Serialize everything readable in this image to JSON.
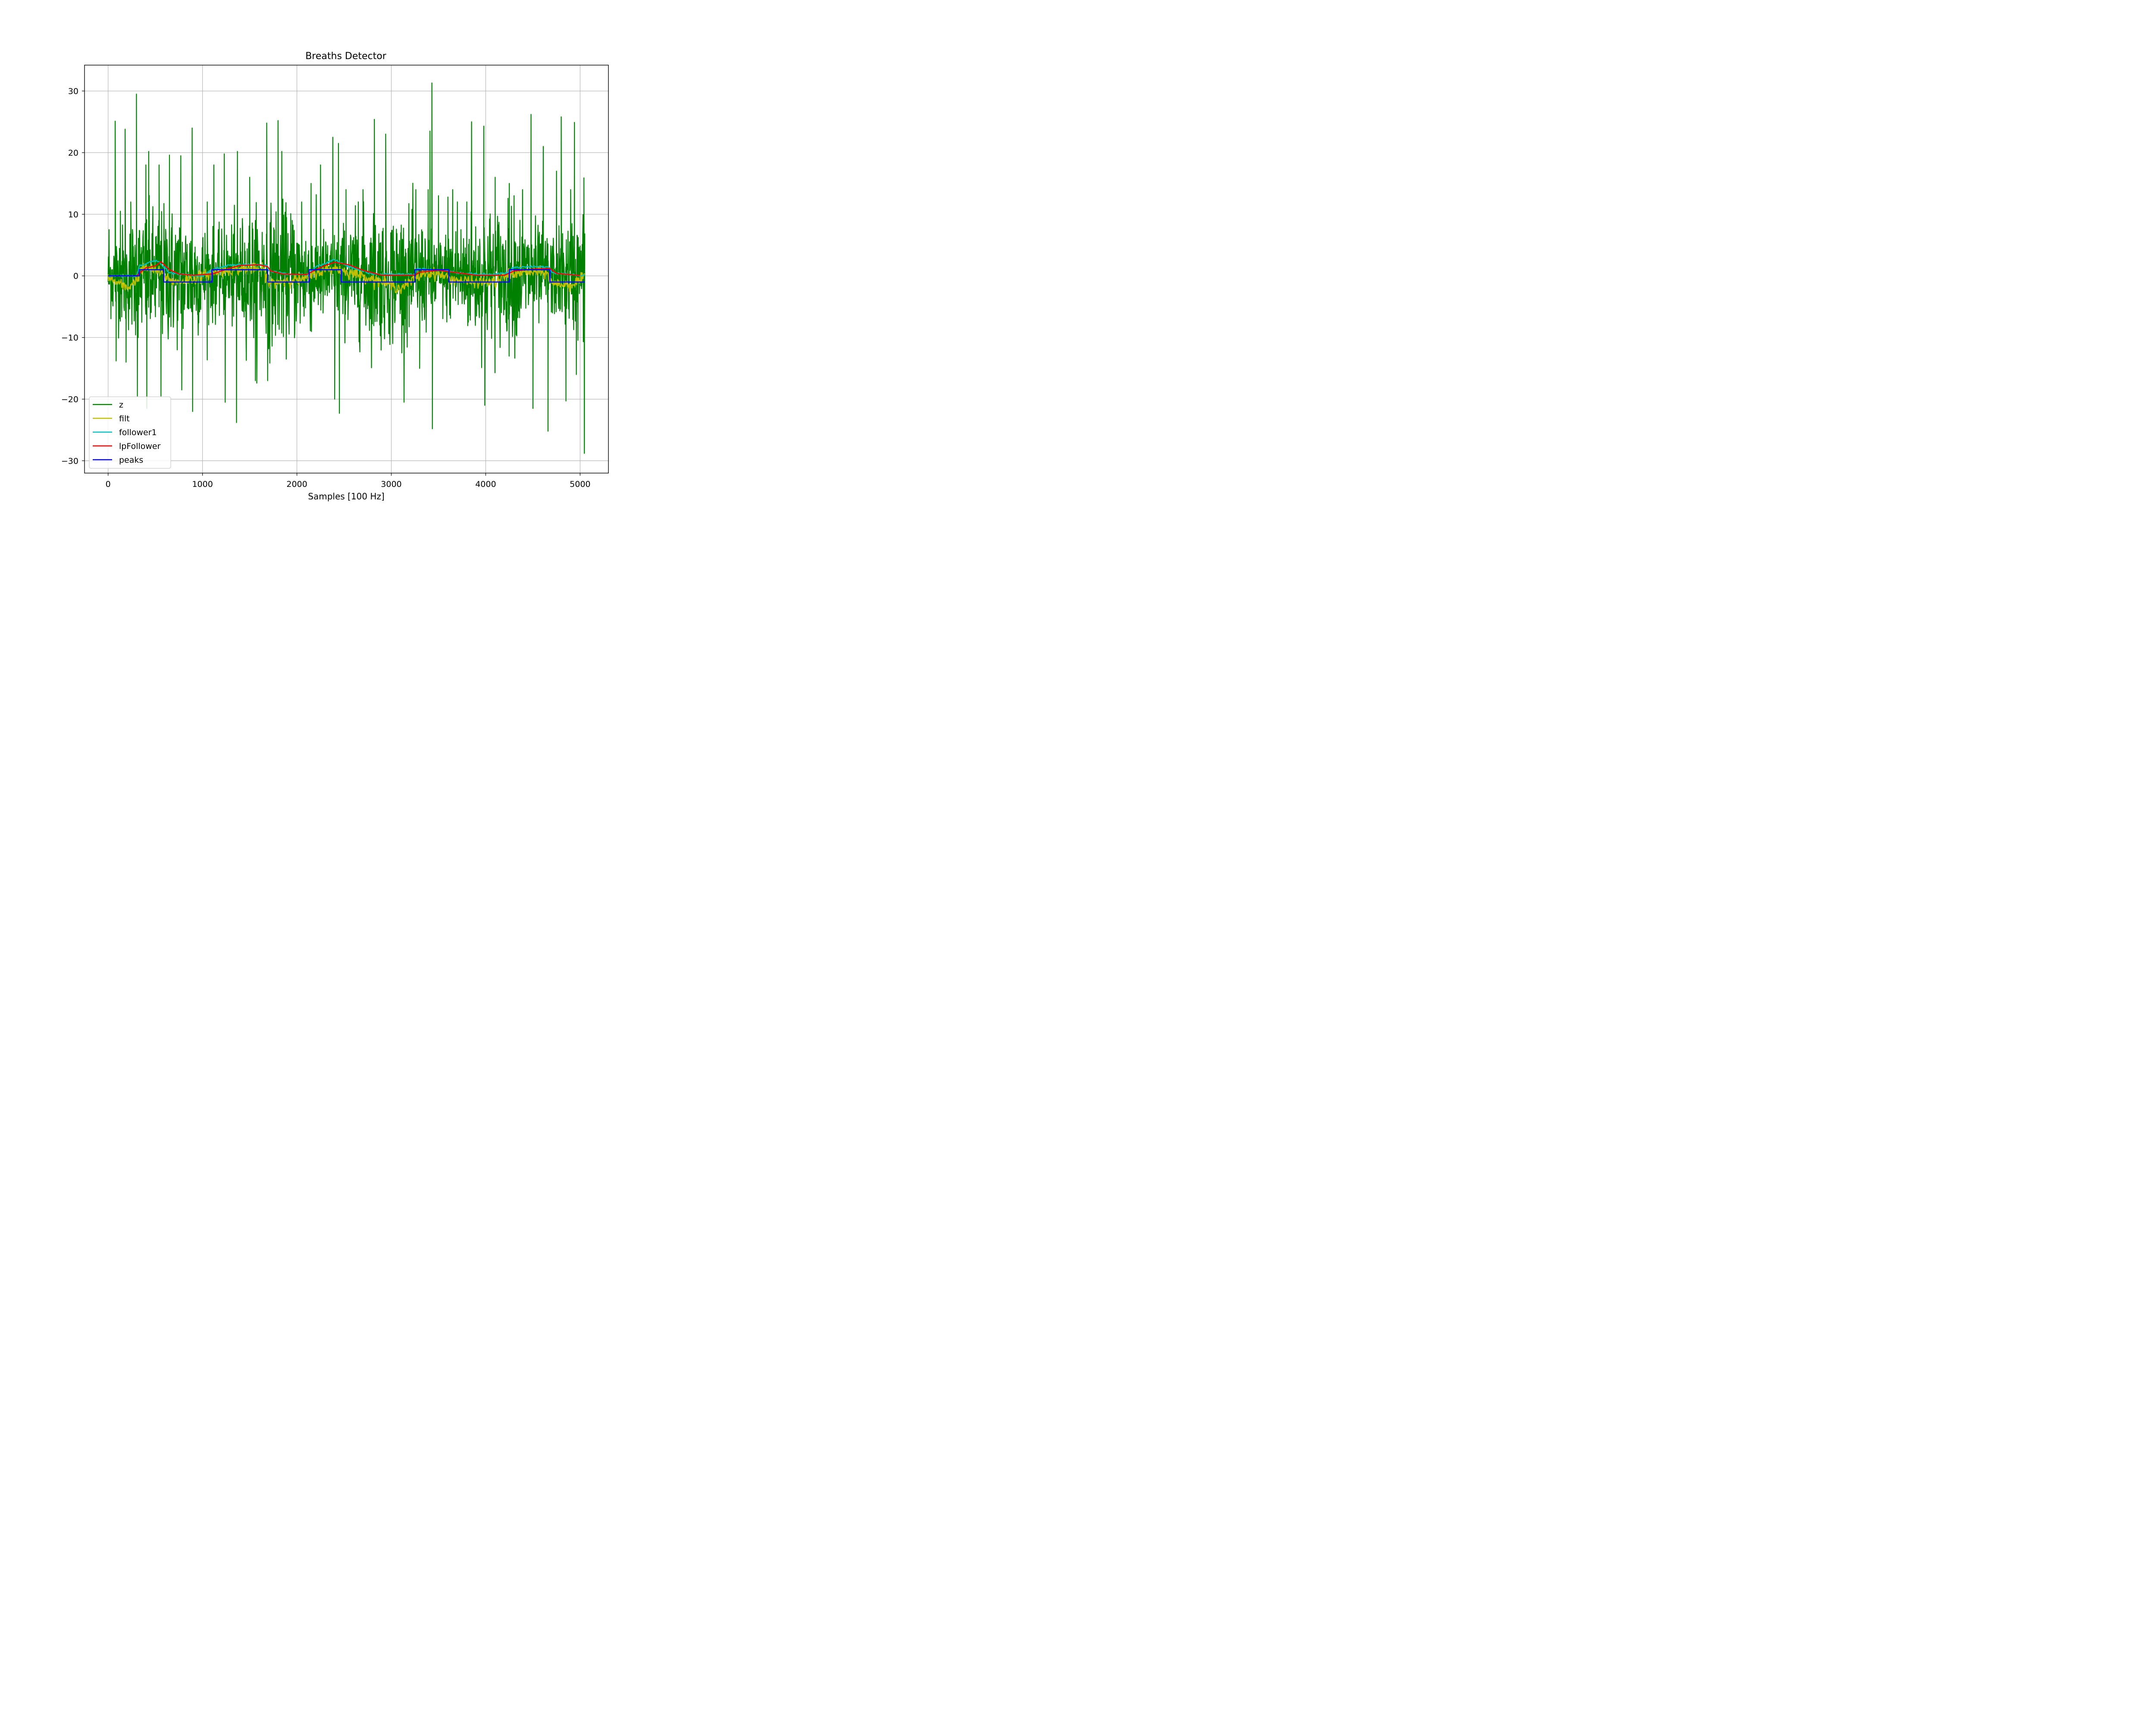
{
  "chart_data": {
    "type": "line",
    "title": "Breaths Detector",
    "xlabel": "Samples [100 Hz]",
    "ylabel": "",
    "xlim": [
      -250,
      5300
    ],
    "ylim": [
      -32,
      34.2
    ],
    "grid": true,
    "legend_position": "lower-left",
    "x_ticks": [
      0,
      1000,
      2000,
      3000,
      4000,
      5000
    ],
    "x_tick_labels": [
      "0",
      "1000",
      "2000",
      "3000",
      "4000",
      "5000"
    ],
    "y_ticks": [
      30,
      20,
      10,
      0,
      -10,
      -20,
      -30
    ],
    "y_tick_labels": [
      "30",
      "20",
      "10",
      "0",
      "−10",
      "−20",
      "−30"
    ],
    "n_samples": 5050,
    "series": [
      {
        "name": "z",
        "color": "#008000",
        "description_points": [
          [
            0,
            0
          ],
          [
            10,
            7.5
          ],
          [
            30,
            -5
          ],
          [
            75,
            25.1
          ],
          [
            85,
            -13.8
          ],
          [
            130,
            10.5
          ],
          [
            180,
            23.8
          ],
          [
            190,
            -14
          ],
          [
            240,
            12
          ],
          [
            300,
            29.5
          ],
          [
            310,
            -19.5
          ],
          [
            400,
            18
          ],
          [
            410,
            -21.5
          ],
          [
            430,
            20.2
          ],
          [
            540,
            18
          ],
          [
            560,
            -19.5
          ],
          [
            650,
            19.6
          ],
          [
            770,
            19.5
          ],
          [
            780,
            -18.5
          ],
          [
            890,
            24
          ],
          [
            895,
            -22
          ],
          [
            1050,
            12
          ],
          [
            1120,
            18
          ],
          [
            1230,
            19.8
          ],
          [
            1240,
            -20.5
          ],
          [
            1370,
            20.2
          ],
          [
            1360,
            -23.8
          ],
          [
            1500,
            16
          ],
          [
            1560,
            -17
          ],
          [
            1680,
            24.8
          ],
          [
            1690,
            -17
          ],
          [
            1800,
            25.2
          ],
          [
            1840,
            20.2
          ],
          [
            1950,
            9
          ],
          [
            2050,
            12
          ],
          [
            2150,
            15
          ],
          [
            2250,
            18
          ],
          [
            2380,
            22.5
          ],
          [
            2400,
            -20
          ],
          [
            2440,
            21.5
          ],
          [
            2450,
            -22.3
          ],
          [
            2520,
            14
          ],
          [
            2650,
            12
          ],
          [
            2700,
            14
          ],
          [
            2820,
            25.4
          ],
          [
            2940,
            23
          ],
          [
            3100,
            7
          ],
          [
            3260,
            14
          ],
          [
            3300,
            -15
          ],
          [
            3390,
            14
          ],
          [
            3410,
            23.5
          ],
          [
            3430,
            31.3
          ],
          [
            3435,
            -24.8
          ],
          [
            3500,
            13
          ],
          [
            3600,
            12.8
          ],
          [
            3650,
            14
          ],
          [
            3700,
            12
          ],
          [
            3800,
            12
          ],
          [
            3850,
            25
          ],
          [
            3980,
            24.3
          ],
          [
            3990,
            -21
          ],
          [
            4100,
            16
          ],
          [
            4250,
            15
          ],
          [
            4300,
            13
          ],
          [
            4390,
            14
          ],
          [
            4480,
            26.2
          ],
          [
            4500,
            -21.5
          ],
          [
            4610,
            21
          ],
          [
            4660,
            -25.2
          ],
          [
            4750,
            17
          ],
          [
            4800,
            25.8
          ],
          [
            4850,
            -20.3
          ],
          [
            4900,
            14
          ],
          [
            4940,
            24.9
          ],
          [
            4960,
            -16
          ],
          [
            5040,
            15.9
          ],
          [
            5045,
            -28.8
          ]
        ]
      },
      {
        "name": "filt",
        "color": "#bfbf00",
        "description_points": [
          [
            0,
            -0.3
          ],
          [
            200,
            -2
          ],
          [
            310,
            -0.5
          ],
          [
            350,
            1.2
          ],
          [
            500,
            1
          ],
          [
            600,
            0
          ],
          [
            700,
            -1
          ],
          [
            900,
            -0.5
          ],
          [
            1100,
            0.5
          ],
          [
            1300,
            1
          ],
          [
            1500,
            1.2
          ],
          [
            1650,
            1
          ],
          [
            1700,
            -1.2
          ],
          [
            1900,
            -0.7
          ],
          [
            2100,
            -0.5
          ],
          [
            2200,
            0.5
          ],
          [
            2400,
            1.3
          ],
          [
            2500,
            0.8
          ],
          [
            2700,
            0
          ],
          [
            2900,
            -1
          ],
          [
            3100,
            -2
          ],
          [
            3250,
            -0.5
          ],
          [
            3350,
            0.5
          ],
          [
            3500,
            0.3
          ],
          [
            3650,
            -0.5
          ],
          [
            3850,
            -1
          ],
          [
            4100,
            -1
          ],
          [
            4250,
            0.3
          ],
          [
            4450,
            0.6
          ],
          [
            4650,
            0.5
          ],
          [
            4700,
            -1.2
          ],
          [
            4900,
            -1.5
          ],
          [
            5050,
            -0.3
          ]
        ]
      },
      {
        "name": "follower1",
        "color": "#00bfbf",
        "description_points": [
          [
            0,
            0
          ],
          [
            300,
            0
          ],
          [
            330,
            1.6
          ],
          [
            500,
            2.5
          ],
          [
            560,
            2
          ],
          [
            650,
            0.5
          ],
          [
            800,
            0.2
          ],
          [
            1000,
            0
          ],
          [
            1100,
            1
          ],
          [
            1300,
            1.8
          ],
          [
            1500,
            1.8
          ],
          [
            1680,
            1.7
          ],
          [
            1700,
            0.8
          ],
          [
            1900,
            0.3
          ],
          [
            2120,
            0.2
          ],
          [
            2200,
            1.5
          ],
          [
            2400,
            2.6
          ],
          [
            2550,
            1.5
          ],
          [
            2800,
            0.3
          ],
          [
            3250,
            0.2
          ],
          [
            3270,
            1.2
          ],
          [
            3600,
            0.8
          ],
          [
            3700,
            0.5
          ],
          [
            4000,
            0.2
          ],
          [
            4250,
            0.5
          ],
          [
            4280,
            1.3
          ],
          [
            4500,
            1.5
          ],
          [
            4680,
            1.4
          ],
          [
            4700,
            0.5
          ],
          [
            5000,
            0.1
          ]
        ]
      },
      {
        "name": "lpFollower",
        "color": "#ff0000",
        "description_points": [
          [
            0,
            0
          ],
          [
            300,
            0
          ],
          [
            400,
            1.3
          ],
          [
            500,
            1.6
          ],
          [
            560,
            2.3
          ],
          [
            650,
            1
          ],
          [
            750,
            0.3
          ],
          [
            900,
            0.1
          ],
          [
            1100,
            0.3
          ],
          [
            1300,
            1.3
          ],
          [
            1400,
            1.7
          ],
          [
            1600,
            1.8
          ],
          [
            1690,
            1.5
          ],
          [
            1720,
            0.8
          ],
          [
            1850,
            0.3
          ],
          [
            2100,
            0.2
          ],
          [
            2200,
            1
          ],
          [
            2300,
            1.7
          ],
          [
            2400,
            2.2
          ],
          [
            2550,
            1.8
          ],
          [
            2700,
            0.9
          ],
          [
            2900,
            0.1
          ],
          [
            3250,
            0.1
          ],
          [
            3300,
            0.6
          ],
          [
            3500,
            0.9
          ],
          [
            3650,
            0.6
          ],
          [
            3900,
            0.1
          ],
          [
            4200,
            0.1
          ],
          [
            4300,
            0.8
          ],
          [
            4500,
            1.1
          ],
          [
            4680,
            1.2
          ],
          [
            4750,
            0.4
          ],
          [
            5000,
            0.05
          ]
        ]
      },
      {
        "name": "peaks",
        "color": "#0000ff",
        "steps": [
          [
            0,
            0
          ],
          [
            330,
            1
          ],
          [
            590,
            -1
          ],
          [
            1100,
            1
          ],
          [
            1690,
            -1
          ],
          [
            2130,
            1
          ],
          [
            2470,
            -1
          ],
          [
            3250,
            1
          ],
          [
            3610,
            -1
          ],
          [
            4250,
            1
          ],
          [
            4680,
            -1
          ],
          [
            5050,
            -1
          ]
        ]
      }
    ]
  }
}
